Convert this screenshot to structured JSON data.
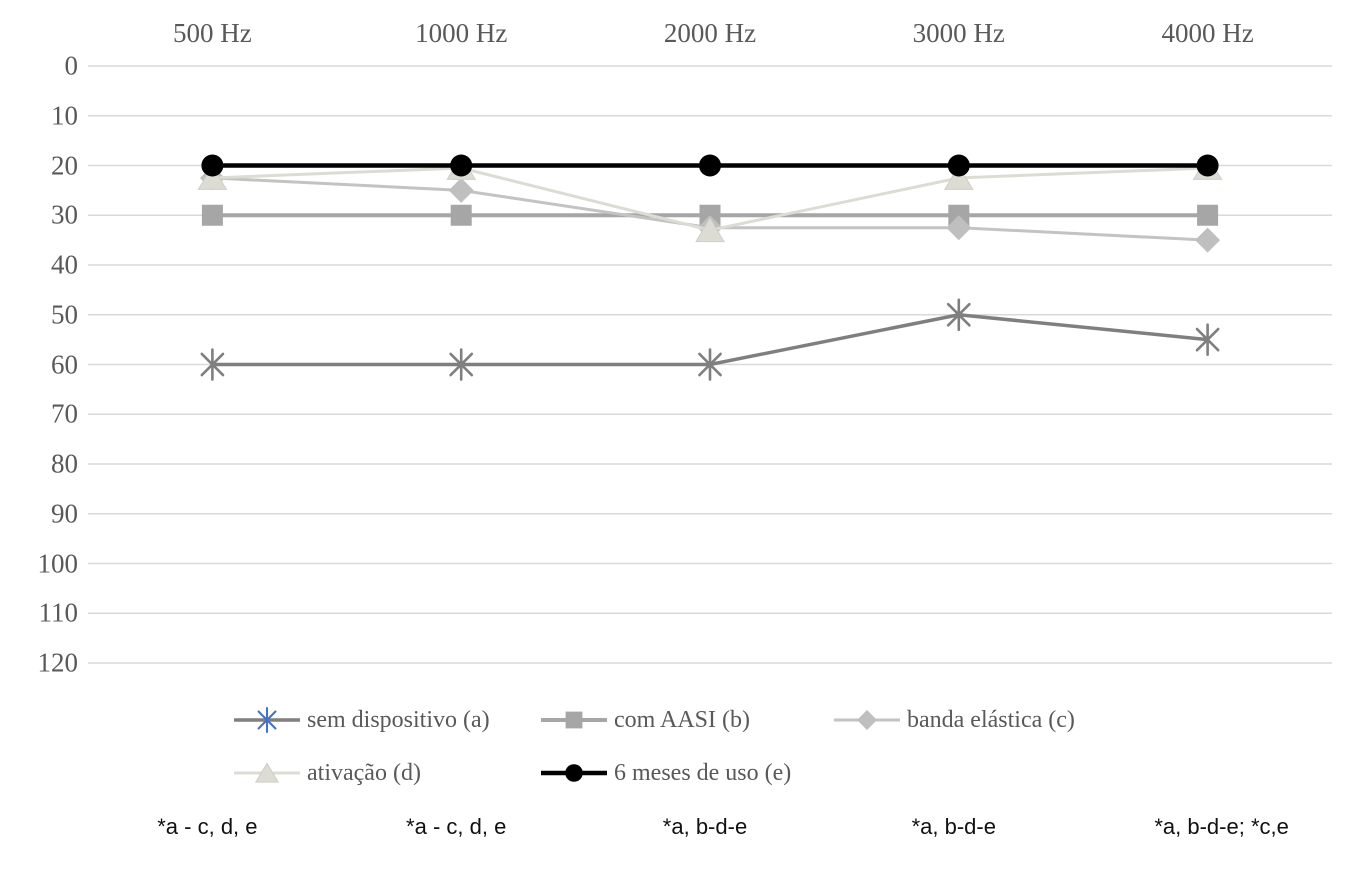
{
  "chart_data": {
    "type": "line",
    "title": "",
    "categories": [
      "500 Hz",
      "1000 Hz",
      "2000 Hz",
      "3000 Hz",
      "4000 Hz"
    ],
    "xlabel": "",
    "ylabel": "",
    "y_axis": {
      "ticks": [
        0,
        10,
        20,
        30,
        40,
        50,
        60,
        70,
        80,
        90,
        100,
        110,
        120
      ],
      "min": 0,
      "max": 120,
      "inverted": true,
      "grid": true
    },
    "gridline_color": "#d9d9d9",
    "axis_text_color": "#595959",
    "legend_position": "bottom",
    "series": [
      {
        "name": "sem dispositivo (a)",
        "marker": "asterisk",
        "line_color": "#7f7f7f",
        "marker_color": "#7f7f7f",
        "legend_marker_color": "#4472c4",
        "line_width": 3.5,
        "values": [
          60,
          60,
          60,
          50,
          55
        ]
      },
      {
        "name": "com AASI (b)",
        "marker": "square",
        "line_color": "#a6a6a6",
        "marker_color": "#a6a6a6",
        "legend_marker_color": "#a6a6a6",
        "line_width": 4,
        "values": [
          30,
          30,
          30,
          30,
          30
        ]
      },
      {
        "name": "banda elástica (c)",
        "marker": "diamond",
        "line_color": "#c3c3c3",
        "marker_color": "#bfbfbf",
        "legend_marker_color": "#bfbfbf",
        "line_width": 3,
        "values": [
          22.5,
          25,
          32.5,
          32.5,
          35
        ]
      },
      {
        "name": "ativação (d)",
        "marker": "triangle",
        "line_color": "#dcdcd4",
        "marker_color": "#dcdcd4",
        "legend_marker_color": "#dcdcd4",
        "line_width": 3,
        "values": [
          22.5,
          20.5,
          33,
          22.5,
          20.5
        ]
      },
      {
        "name": "6 meses de uso (e)",
        "marker": "circle",
        "line_color": "#000000",
        "marker_color": "#000000",
        "legend_marker_color": "#000000",
        "line_width": 4.5,
        "values": [
          20,
          20,
          20,
          20,
          20
        ]
      }
    ]
  },
  "annotations": {
    "items": [
      "*a - c, d, e",
      "*a - c, d, e",
      "*a, b-d-e",
      "*a, b-d-e",
      "*a, b-d-e; *c,e"
    ]
  }
}
